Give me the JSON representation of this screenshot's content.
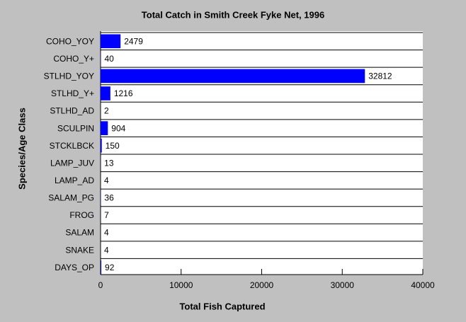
{
  "chart_data": {
    "type": "bar",
    "orientation": "horizontal",
    "title": "Total Catch in Smith Creek Fyke Net, 1996",
    "x_label": "Total Fish Captured",
    "y_label": "Species/Age Class",
    "categories": [
      "COHO_YOY",
      "COHO_Y+",
      "STLHD_YOY",
      "STLHD_Y+",
      "STLHD_AD",
      "SCULPIN",
      "STCKLBCK",
      "LAMP_JUV",
      "LAMP_AD",
      "SALAM_PG",
      "FROG",
      "SALAM",
      "SNAKE",
      "DAYS_OP"
    ],
    "values": [
      2479,
      40,
      32812,
      1216,
      2,
      904,
      150,
      13,
      4,
      36,
      7,
      4,
      4,
      92
    ],
    "color": "#0000ff",
    "xlim": [
      0,
      40000
    ],
    "xticks": [
      0,
      10000,
      20000,
      30000,
      40000
    ]
  }
}
